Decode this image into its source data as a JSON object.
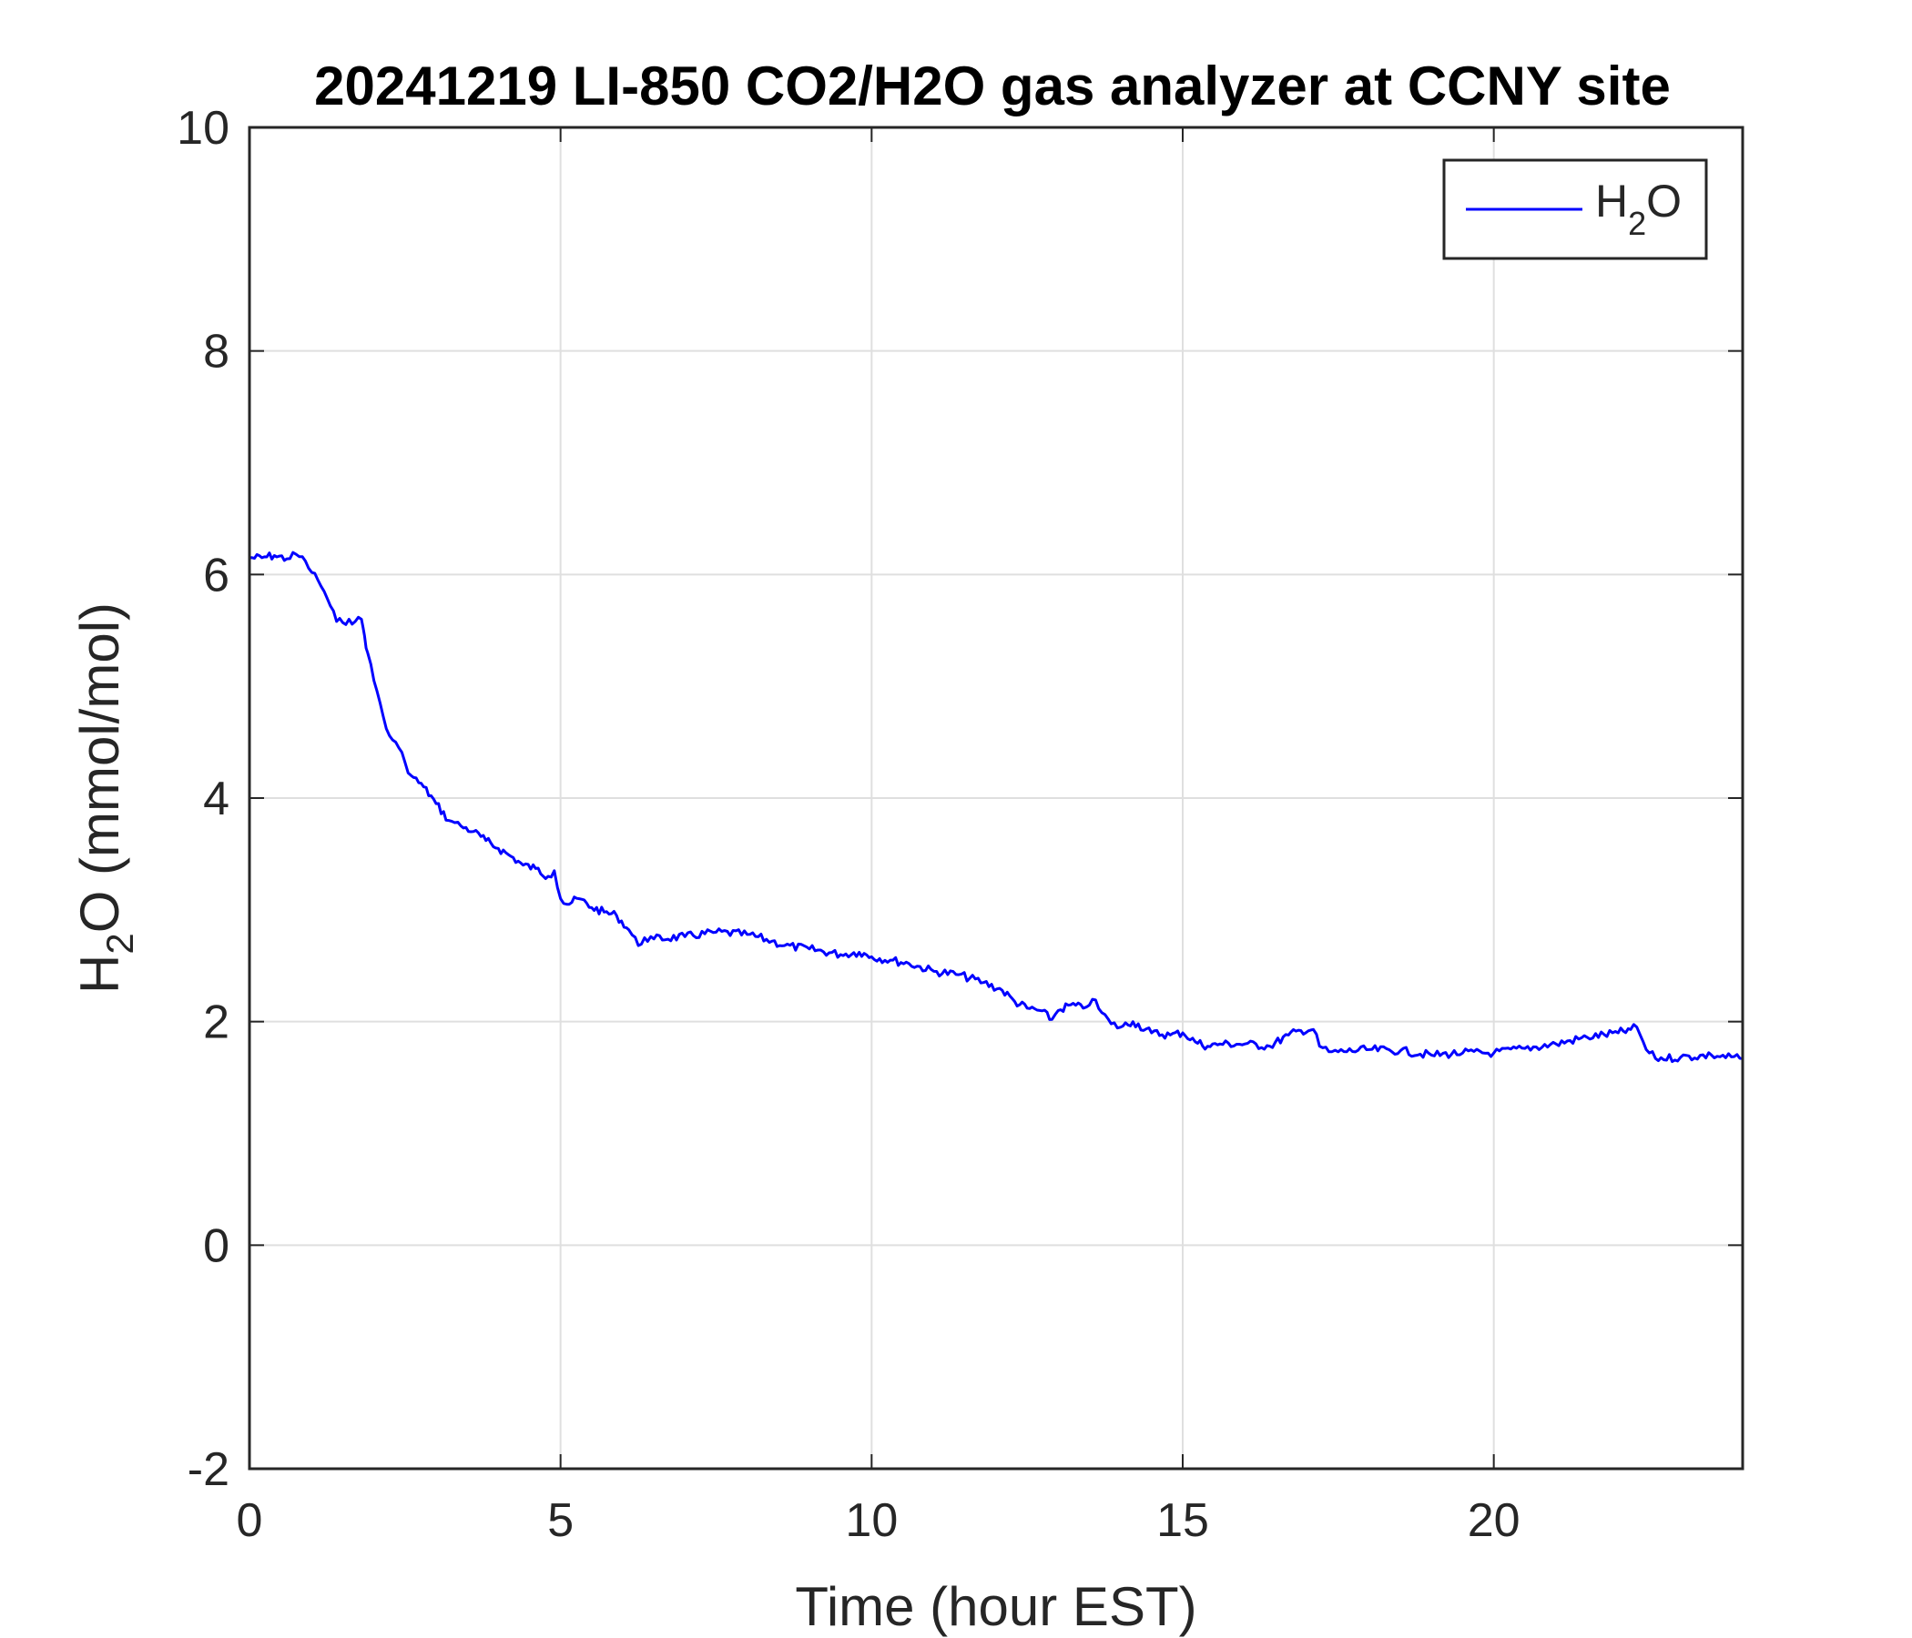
{
  "chart_data": {
    "type": "line",
    "title": "20241219 LI-850 CO2/H2O gas analyzer at CCNY site",
    "xlabel": "Time (hour EST)",
    "ylabel": {
      "main": "H",
      "sub": "2",
      "rest": "O (mmol/mol)"
    },
    "xlim": [
      0,
      24
    ],
    "ylim": [
      -2,
      10
    ],
    "xticks": [
      0,
      5,
      10,
      15,
      20
    ],
    "yticks": [
      -2,
      0,
      2,
      4,
      6,
      8,
      10
    ],
    "grid": true,
    "legend_position": "top-right",
    "series": [
      {
        "legend": {
          "main": "H",
          "sub": "2",
          "rest": "O"
        },
        "color": "#0000ff",
        "x": [
          0,
          0.2,
          0.4,
          0.6,
          0.75,
          0.9,
          1.0,
          1.1,
          1.2,
          1.3,
          1.4,
          1.5,
          1.6,
          1.7,
          1.8,
          1.85,
          1.9,
          2.0,
          2.1,
          2.2,
          2.3,
          2.4,
          2.5,
          2.6,
          2.8,
          3.0,
          3.2,
          3.3,
          3.4,
          3.6,
          3.8,
          4.0,
          4.2,
          4.4,
          4.6,
          4.8,
          4.9,
          5.0,
          5.1,
          5.3,
          5.5,
          5.7,
          5.9,
          6.1,
          6.25,
          6.35,
          6.5,
          7.0,
          7.5,
          8.0,
          8.4,
          8.6,
          9.0,
          9.5,
          9.8,
          10.0,
          10.3,
          10.6,
          11.0,
          11.4,
          11.8,
          12.1,
          12.3,
          12.5,
          12.7,
          12.9,
          13.0,
          13.2,
          13.4,
          13.55,
          13.7,
          13.85,
          14.0,
          14.2,
          14.5,
          14.8,
          15.0,
          15.2,
          15.4,
          15.6,
          16.0,
          16.4,
          16.7,
          16.9,
          17.1,
          17.2,
          17.35,
          17.5,
          18.0,
          18.5,
          19.0,
          19.5,
          20.0,
          20.5,
          21.0,
          21.5,
          22.0,
          22.2,
          22.3,
          22.45,
          22.6,
          23.0,
          23.5,
          24.0
        ],
        "y": [
          6.15,
          6.15,
          6.17,
          6.14,
          6.18,
          6.12,
          6.02,
          5.95,
          5.85,
          5.72,
          5.58,
          5.57,
          5.6,
          5.58,
          5.6,
          5.45,
          5.3,
          5.05,
          4.85,
          4.62,
          4.52,
          4.45,
          4.32,
          4.2,
          4.1,
          3.95,
          3.8,
          3.78,
          3.75,
          3.7,
          3.62,
          3.55,
          3.48,
          3.4,
          3.37,
          3.3,
          3.35,
          3.1,
          3.05,
          3.1,
          3.02,
          2.98,
          2.95,
          2.82,
          2.68,
          2.75,
          2.74,
          2.76,
          2.8,
          2.78,
          2.72,
          2.68,
          2.65,
          2.6,
          2.62,
          2.58,
          2.55,
          2.52,
          2.45,
          2.42,
          2.35,
          2.28,
          2.18,
          2.12,
          2.1,
          2.02,
          2.1,
          2.15,
          2.12,
          2.2,
          2.08,
          1.98,
          1.95,
          2.0,
          1.9,
          1.88,
          1.9,
          1.82,
          1.78,
          1.8,
          1.8,
          1.78,
          1.88,
          1.92,
          1.93,
          1.78,
          1.73,
          1.73,
          1.75,
          1.74,
          1.7,
          1.72,
          1.72,
          1.76,
          1.8,
          1.86,
          1.9,
          1.93,
          1.95,
          1.75,
          1.67,
          1.68,
          1.7,
          1.67
        ]
      }
    ]
  }
}
